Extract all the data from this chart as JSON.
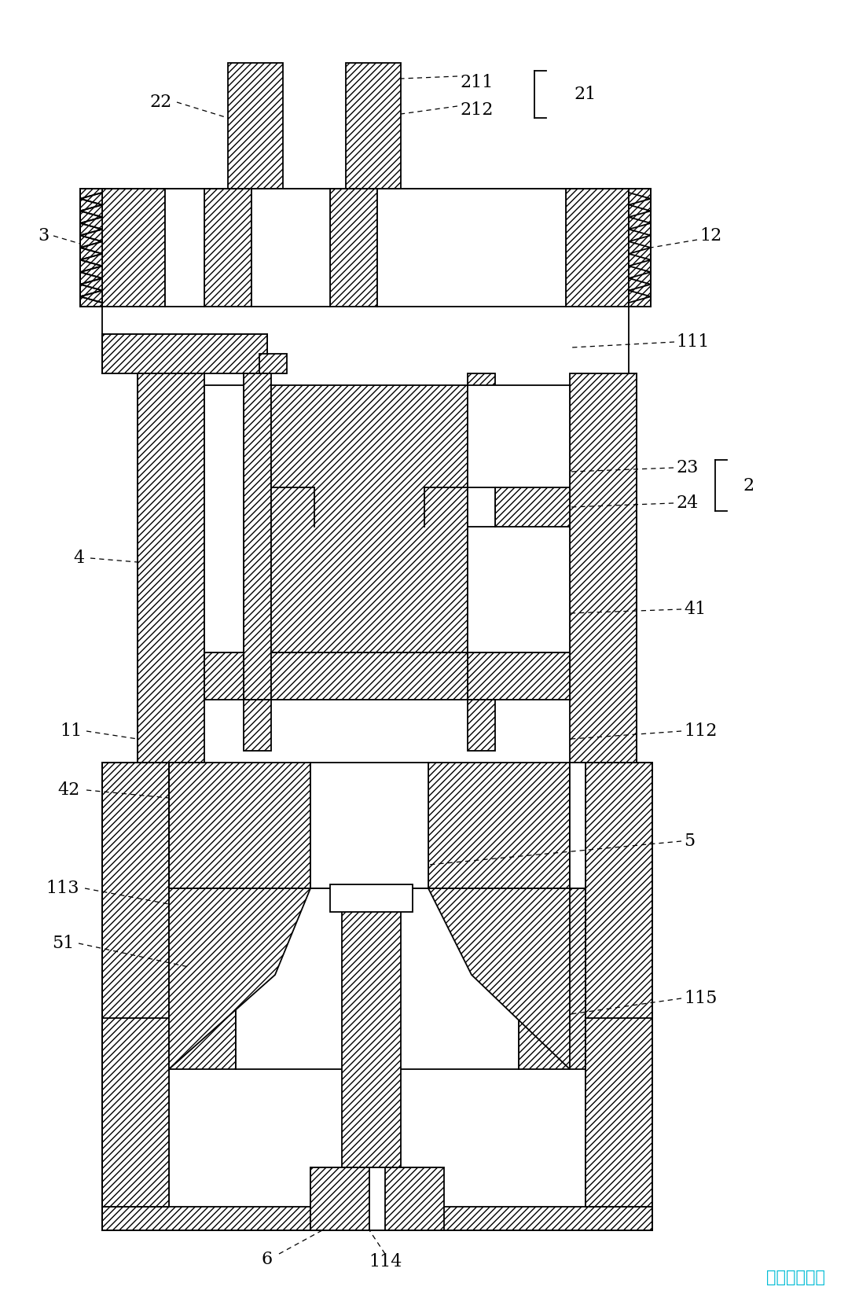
{
  "bg_color": "#ffffff",
  "line_color": "#000000",
  "watermark_text": "彩虹网址导航",
  "watermark_color": "#00bcd4",
  "label_fontsize": 16,
  "hatch": "////",
  "lw": 1.3
}
